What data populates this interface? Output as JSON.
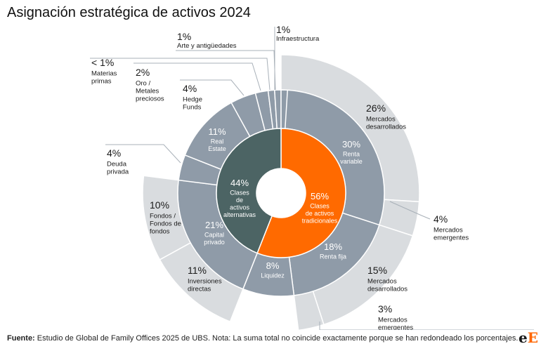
{
  "page": {
    "title": "Asignación estratégica de activos 2024",
    "footer_label": "Fuente:",
    "footer_text": "Estudio de Global de Family Offices 2025 de UBS. Nota: La suma total no coincide exactamente porque se han redondeado los porcentajes.",
    "logo_lower": "e",
    "logo_upper": "E"
  },
  "colors": {
    "traditional": "#ff6a00",
    "alternative": "#4c6464",
    "middle": "#8f9ba8",
    "outer_ring": "#d9dcdf",
    "leader": "#a8b0b8",
    "white_text": "#ffffff",
    "dark_text": "#1a1a1a"
  },
  "chart_data": {
    "type": "sunburst",
    "title": "Asignación estratégica de activos 2024",
    "inner": [
      {
        "value": 56,
        "pct": "56%",
        "label": "Clases\nde activos\ntradicionales",
        "color_key": "traditional"
      },
      {
        "value": 44,
        "pct": "44%",
        "label": "Clases\nde\nactivos\nalternativas",
        "color_key": "alternative"
      }
    ],
    "middle": [
      {
        "value": 30,
        "pct": "30%",
        "label": "Renta\nvariable",
        "parent": 0
      },
      {
        "value": 18,
        "pct": "18%",
        "label": "Renta fija",
        "parent": 0
      },
      {
        "value": 8,
        "pct": "8%",
        "label": "Liquidez",
        "parent": 0
      },
      {
        "value": 21,
        "pct": "21%",
        "label": "Capital\nprivado",
        "parent": 1
      },
      {
        "value": 4,
        "pct": "",
        "label": "",
        "parent": 1
      },
      {
        "value": 11,
        "pct": "11%",
        "label": "Real\nEstate",
        "parent": 1
      },
      {
        "value": 4,
        "pct": "",
        "label": "",
        "parent": 1
      },
      {
        "value": 2,
        "pct": "",
        "label": "",
        "parent": 1
      },
      {
        "value": 1,
        "pct": "",
        "label": "",
        "parent": 1
      },
      {
        "value": 1,
        "pct": "",
        "label": "",
        "parent": 1
      },
      {
        "value": 1,
        "pct": "",
        "label": "",
        "parent": 1
      }
    ],
    "outer": [
      {
        "value": 26,
        "pct": "26%",
        "label": "Mercados\ndesarrollados",
        "middle": 0,
        "offset": 0
      },
      {
        "value": 4,
        "pct": "4%",
        "label": "Mercados\nemergentes",
        "middle": 0,
        "offset": 26
      },
      {
        "value": 15,
        "pct": "15%",
        "label": "Mercados\ndesarrollados",
        "middle": 1,
        "offset": 0
      },
      {
        "value": 3,
        "pct": "3%",
        "label": "Mercados\nemergentes",
        "middle": 1,
        "offset": 15
      },
      {
        "value": 11,
        "pct": "11%",
        "label": "Inversiones\ndirectas",
        "middle": 3,
        "offset": 0
      },
      {
        "value": 10,
        "pct": "10%",
        "label": "Fondos /\nFondos de\nfondos",
        "middle": 3,
        "offset": 11
      }
    ],
    "callouts": [
      {
        "middle": 4,
        "pct": "4%",
        "label": "Deuda\nprivada"
      },
      {
        "middle": 6,
        "pct": "4%",
        "label": "Hedge\nFunds"
      },
      {
        "middle": 7,
        "pct": "2%",
        "label": "Oro /\nMetales\npreciosos"
      },
      {
        "middle": 8,
        "pct": "< 1%",
        "label": "Materias\nprimas"
      },
      {
        "middle": 9,
        "pct": "1%",
        "label": "Arte y antigüedades"
      },
      {
        "middle": 10,
        "pct": "1%",
        "label": "Infraestructura"
      }
    ]
  }
}
